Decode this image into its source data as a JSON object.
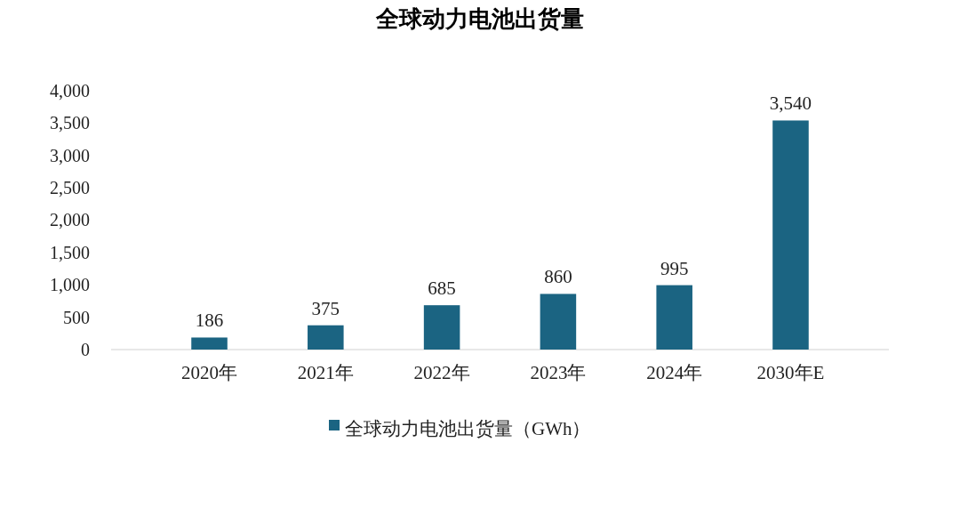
{
  "chart_data": {
    "type": "bar",
    "title": "全球动力电池出货量",
    "categories": [
      "2020年",
      "2021年",
      "2022年",
      "2023年",
      "2024年",
      "2030年E"
    ],
    "series": [
      {
        "name": "全球动力电池出货量（GWh）",
        "color": "#1b6482",
        "values": [
          186,
          375,
          685,
          860,
          995,
          3540
        ]
      }
    ],
    "ylim": [
      0,
      4000
    ],
    "yticks": [
      0,
      {
        "value": 500,
        "label": "500"
      },
      {
        "value": 1000,
        "label": "1,000"
      },
      {
        "value": 1500,
        "label": "1,500"
      },
      {
        "value": 2000,
        "label": "2,000"
      },
      {
        "value": 2500,
        "label": "2,500"
      },
      {
        "value": 3000,
        "label": "3,000"
      },
      {
        "value": 3500,
        "label": "3,500"
      },
      {
        "value": 4000,
        "label": "4,000"
      }
    ],
    "value_labels": [
      "186",
      "375",
      "685",
      "860",
      "995",
      "3,540"
    ],
    "legend": "bottom",
    "grid": false
  }
}
